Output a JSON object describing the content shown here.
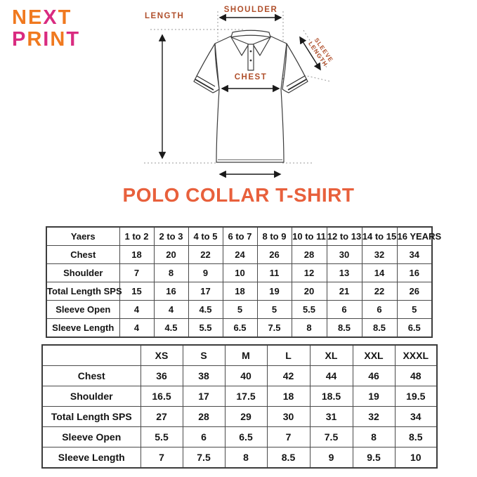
{
  "logo": {
    "line1_segments": [
      {
        "text": "NE",
        "color": "#F0791F"
      },
      {
        "text": "X",
        "color": "#D92B80"
      },
      {
        "text": "T",
        "color": "#F0791F"
      }
    ],
    "line2_segments": [
      {
        "text": "P",
        "color": "#D92B80"
      },
      {
        "text": "R",
        "color": "#F0791F"
      },
      {
        "text": "I",
        "color": "#D92B80"
      },
      {
        "text": "N",
        "color": "#F0791F"
      },
      {
        "text": "T",
        "color": "#D92B80"
      }
    ]
  },
  "diagram": {
    "labels": {
      "length": "LENGTH",
      "shoulder": "SHOULDER",
      "chest": "CHEST",
      "sleeve_line1": "SLEEVE",
      "sleeve_line2": "LENGTH"
    },
    "label_color": "#B0502C"
  },
  "title": {
    "text": "POLO COLLAR T-SHIRT",
    "color": "#E8603C"
  },
  "size_tables": {
    "kids": {
      "header": [
        "Yaers",
        "1 to 2",
        "2 to 3",
        "4 to 5",
        "6 to 7",
        "8 to 9",
        "10 to 11",
        "12 to 13",
        "14 to 15",
        "16 YEARS"
      ],
      "rows": [
        {
          "label": "Chest",
          "values": [
            "18",
            "20",
            "22",
            "24",
            "26",
            "28",
            "30",
            "32",
            "34"
          ]
        },
        {
          "label": "Shoulder",
          "values": [
            "7",
            "8",
            "9",
            "10",
            "11",
            "12",
            "13",
            "14",
            "16"
          ]
        },
        {
          "label": "Total Length SPS",
          "values": [
            "15",
            "16",
            "17",
            "18",
            "19",
            "20",
            "21",
            "22",
            "26"
          ]
        },
        {
          "label": "Sleeve Open",
          "values": [
            "4",
            "4",
            "4.5",
            "5",
            "5",
            "5.5",
            "6",
            "6",
            "5"
          ]
        },
        {
          "label": "Sleeve Length",
          "values": [
            "4",
            "4.5",
            "5.5",
            "6.5",
            "7.5",
            "8",
            "8.5",
            "8.5",
            "6.5"
          ]
        }
      ]
    },
    "adult": {
      "header": [
        "",
        "XS",
        "S",
        "M",
        "L",
        "XL",
        "XXL",
        "XXXL"
      ],
      "rows": [
        {
          "label": "Chest",
          "values": [
            "36",
            "38",
            "40",
            "42",
            "44",
            "46",
            "48"
          ]
        },
        {
          "label": "Shoulder",
          "values": [
            "16.5",
            "17",
            "17.5",
            "18",
            "18.5",
            "19",
            "19.5"
          ]
        },
        {
          "label": "Total Length SPS",
          "values": [
            "27",
            "28",
            "29",
            "30",
            "31",
            "32",
            "34"
          ]
        },
        {
          "label": "Sleeve Open",
          "values": [
            "5.5",
            "6",
            "6.5",
            "7",
            "7.5",
            "8",
            "8.5"
          ]
        },
        {
          "label": "Sleeve Length",
          "values": [
            "7",
            "7.5",
            "8",
            "8.5",
            "9",
            "9.5",
            "10"
          ]
        }
      ]
    }
  }
}
